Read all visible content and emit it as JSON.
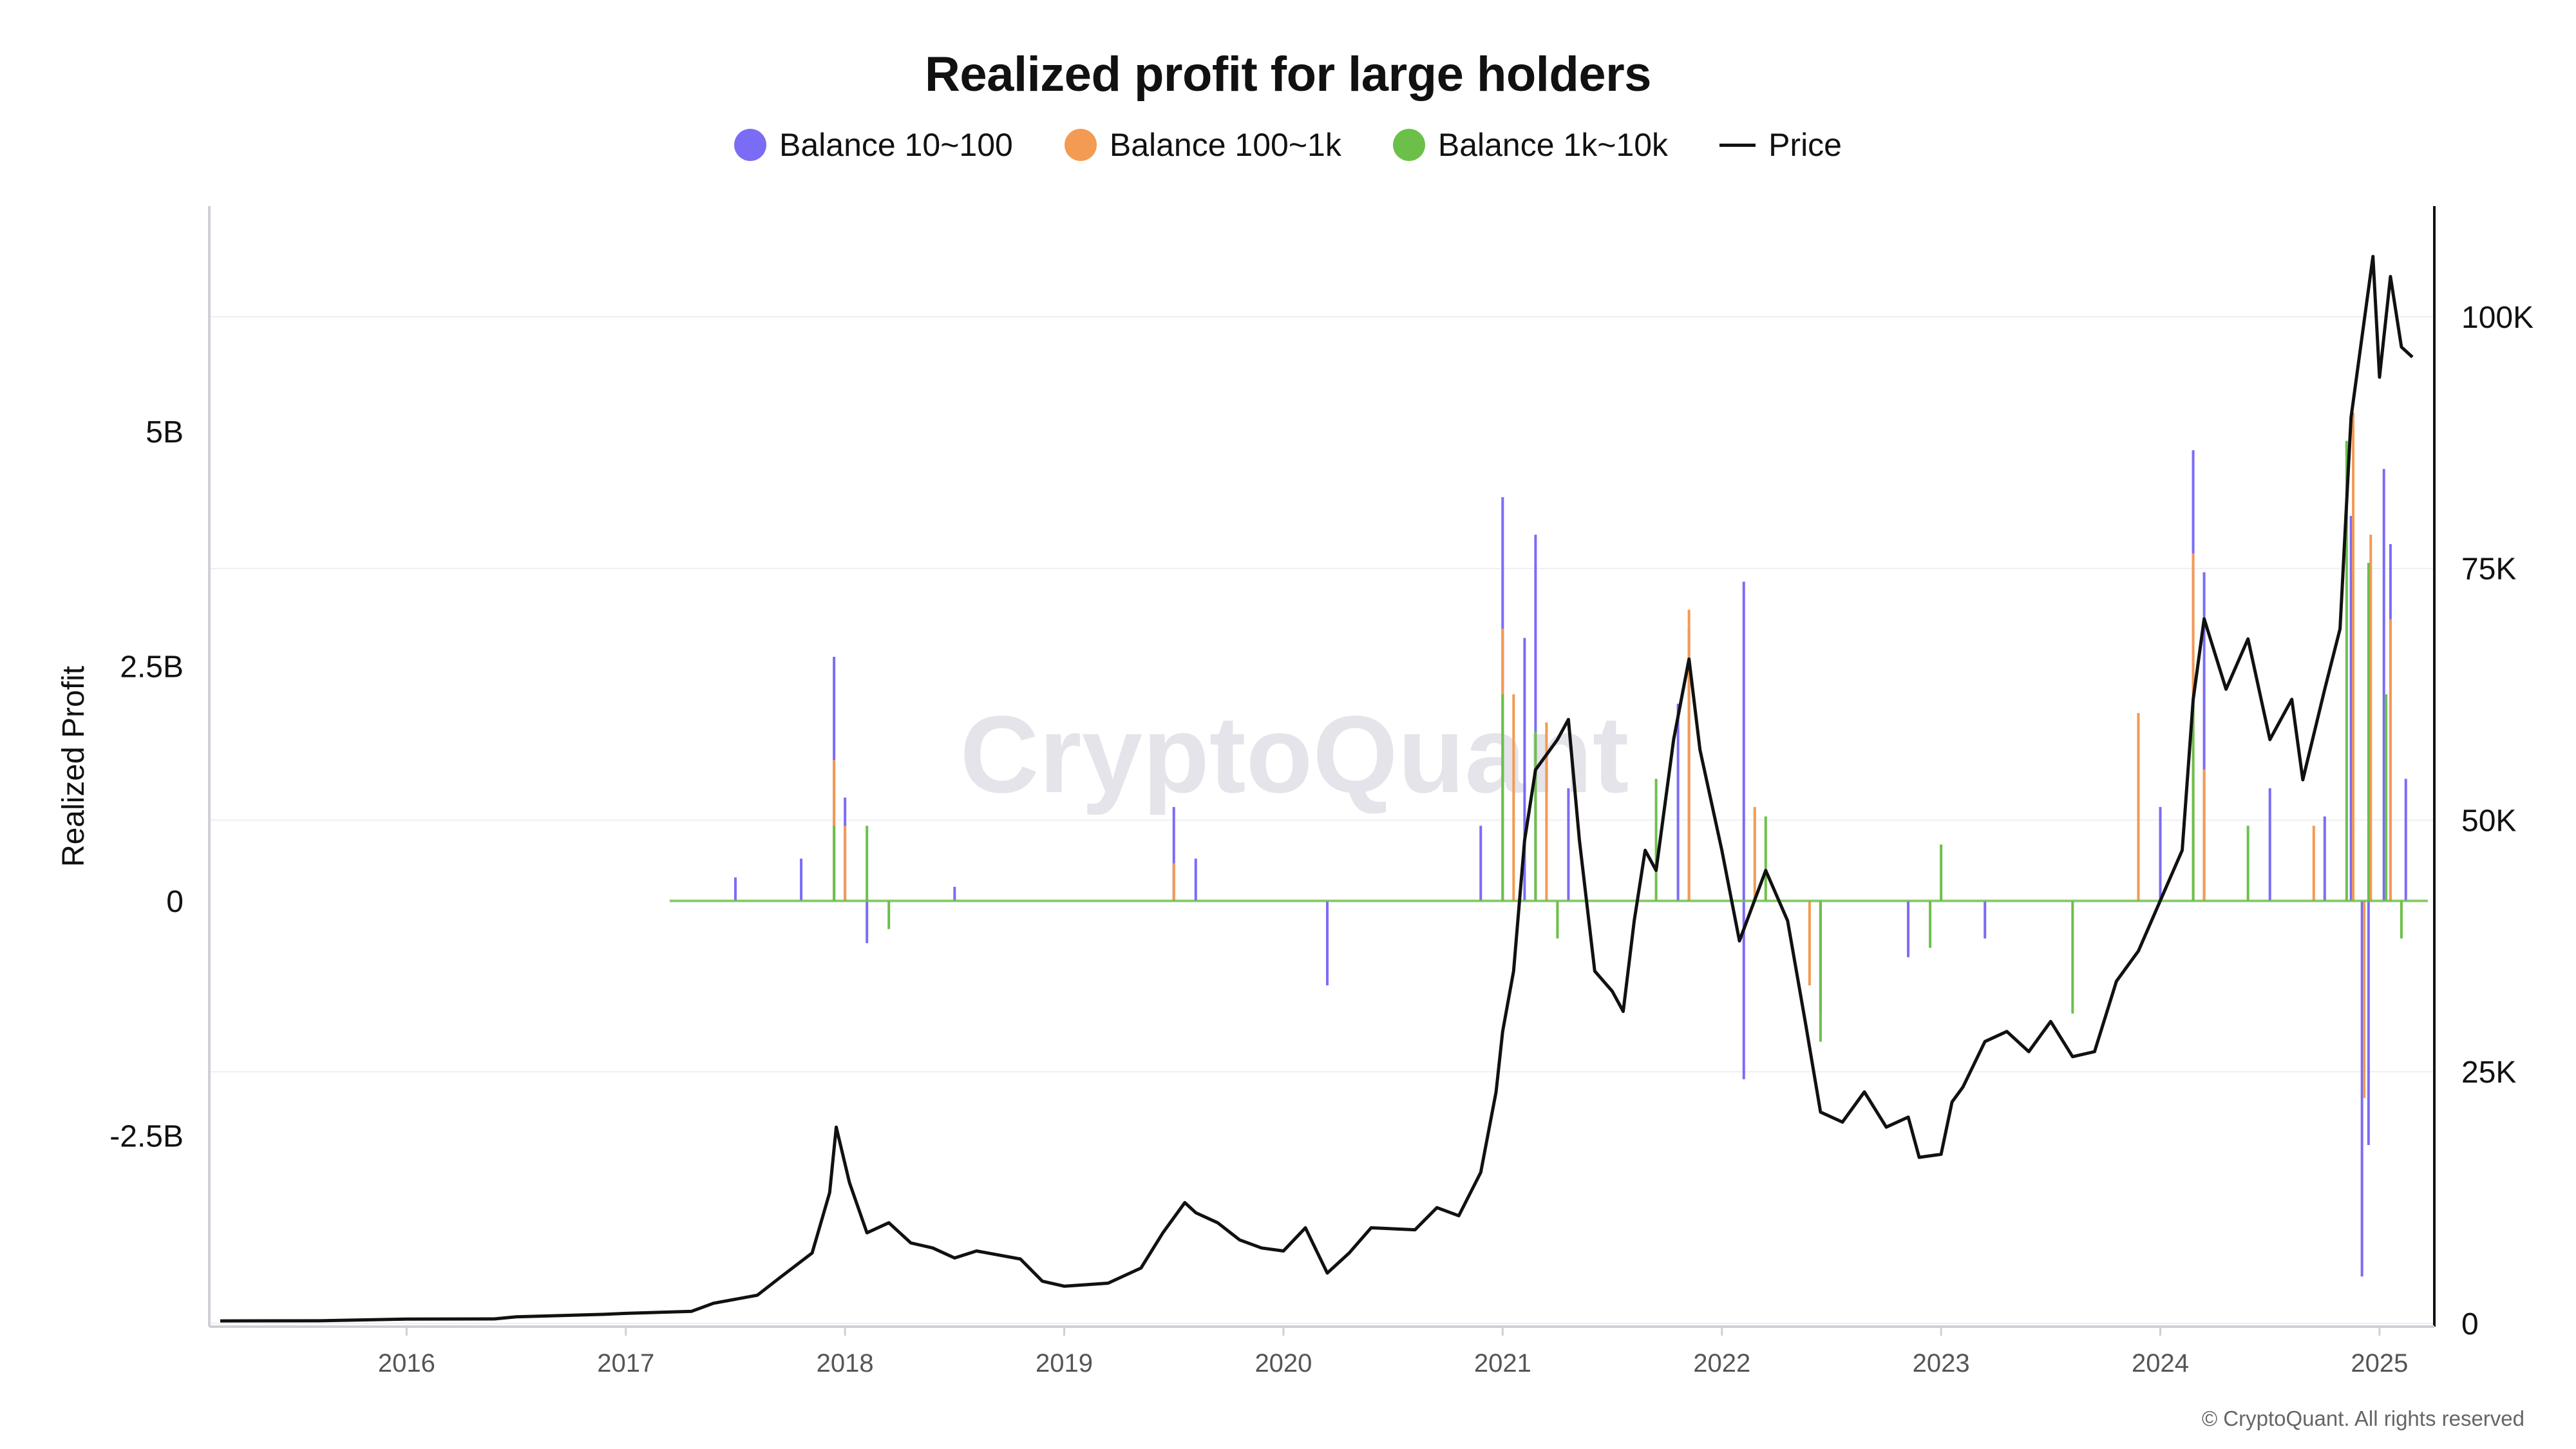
{
  "title": "Realized profit for large holders",
  "legend": [
    {
      "label": "Balance 10~100",
      "color": "#7b6cf6",
      "kind": "dot"
    },
    {
      "label": "Balance 100~1k",
      "color": "#f39a53",
      "kind": "dot"
    },
    {
      "label": "Balance 1k~10k",
      "color": "#6cc04a",
      "kind": "dot"
    },
    {
      "label": "Price",
      "color": "#111111",
      "kind": "line"
    }
  ],
  "footer": "© CryptoQuant. All rights reserved",
  "watermark": "CryptoQuant",
  "chart_data": {
    "type": "bar",
    "title": "Realized profit for large holders",
    "ylabel_left": "Realized Profit",
    "ylabel_right": "",
    "y_left_ticks": [
      "-2.5B",
      "0",
      "2.5B",
      "5B"
    ],
    "y_left_tick_values": [
      -2.5,
      0,
      2.5,
      5
    ],
    "ylim_left": [
      -4.5,
      7.4
    ],
    "y_right_ticks": [
      "0",
      "25K",
      "50K",
      "75K",
      "100K"
    ],
    "y_right_tick_values": [
      0,
      25000,
      50000,
      75000,
      100000
    ],
    "ylim_right": [
      0,
      111000
    ],
    "x_ticks": [
      "2016",
      "2017",
      "2018",
      "2019",
      "2020",
      "2021",
      "2022",
      "2023",
      "2024",
      "2025"
    ],
    "x_tick_values": [
      2016,
      2017,
      2018,
      2019,
      2020,
      2021,
      2022,
      2023,
      2024,
      2025
    ],
    "xlim": [
      2015.1,
      2025.25
    ],
    "grid": true,
    "legend_position": "top-center",
    "series": [
      {
        "name": "Balance 10~100",
        "color": "#7b6cf6",
        "points": [
          [
            2017.5,
            0.25
          ],
          [
            2017.8,
            0.45
          ],
          [
            2017.95,
            2.6
          ],
          [
            2018.0,
            1.1
          ],
          [
            2018.1,
            -0.45
          ],
          [
            2018.5,
            0.15
          ],
          [
            2019.5,
            1.0
          ],
          [
            2019.6,
            0.45
          ],
          [
            2020.2,
            -0.9
          ],
          [
            2020.9,
            0.8
          ],
          [
            2021.0,
            4.3
          ],
          [
            2021.1,
            2.8
          ],
          [
            2021.15,
            3.9
          ],
          [
            2021.3,
            1.2
          ],
          [
            2021.8,
            2.1
          ],
          [
            2021.85,
            2.9
          ],
          [
            2022.1,
            3.4
          ],
          [
            2022.1,
            -1.9
          ],
          [
            2022.45,
            -1.2
          ],
          [
            2022.85,
            -0.6
          ],
          [
            2023.2,
            -0.4
          ],
          [
            2024.0,
            1.0
          ],
          [
            2024.15,
            4.8
          ],
          [
            2024.2,
            3.5
          ],
          [
            2024.5,
            1.2
          ],
          [
            2024.75,
            0.9
          ],
          [
            2024.87,
            4.1
          ],
          [
            2024.92,
            -4.0
          ],
          [
            2024.95,
            -2.6
          ],
          [
            2025.02,
            4.6
          ],
          [
            2025.05,
            3.8
          ],
          [
            2025.12,
            1.3
          ]
        ]
      },
      {
        "name": "Balance 100~1k",
        "color": "#f39a53",
        "points": [
          [
            2017.95,
            1.5
          ],
          [
            2018.0,
            0.8
          ],
          [
            2019.5,
            0.4
          ],
          [
            2021.0,
            2.9
          ],
          [
            2021.05,
            2.2
          ],
          [
            2021.2,
            1.9
          ],
          [
            2021.85,
            3.1
          ],
          [
            2022.15,
            1.0
          ],
          [
            2022.4,
            -0.9
          ],
          [
            2023.9,
            2.0
          ],
          [
            2024.15,
            3.7
          ],
          [
            2024.2,
            1.4
          ],
          [
            2024.7,
            0.8
          ],
          [
            2024.88,
            5.2
          ],
          [
            2024.93,
            -2.1
          ],
          [
            2024.96,
            3.9
          ],
          [
            2025.05,
            3.0
          ]
        ]
      },
      {
        "name": "Balance 1k~10k",
        "color": "#6cc04a",
        "points": [
          [
            2017.95,
            0.8
          ],
          [
            2018.1,
            0.8
          ],
          [
            2018.2,
            -0.3
          ],
          [
            2021.0,
            2.2
          ],
          [
            2021.15,
            1.8
          ],
          [
            2021.25,
            -0.4
          ],
          [
            2021.7,
            1.3
          ],
          [
            2022.2,
            0.9
          ],
          [
            2022.45,
            -1.5
          ],
          [
            2022.95,
            -0.5
          ],
          [
            2023.0,
            0.6
          ],
          [
            2023.6,
            -1.2
          ],
          [
            2024.15,
            2.2
          ],
          [
            2024.4,
            0.8
          ],
          [
            2024.85,
            4.9
          ],
          [
            2024.95,
            3.6
          ],
          [
            2025.03,
            2.2
          ],
          [
            2025.1,
            -0.4
          ]
        ]
      },
      {
        "name": "Price",
        "color": "#111111",
        "points": [
          [
            2015.15,
            250
          ],
          [
            2015.6,
            260
          ],
          [
            2016.0,
            430
          ],
          [
            2016.4,
            450
          ],
          [
            2016.5,
            650
          ],
          [
            2016.9,
            900
          ],
          [
            2017.0,
            1000
          ],
          [
            2017.3,
            1200
          ],
          [
            2017.4,
            2000
          ],
          [
            2017.6,
            2800
          ],
          [
            2017.7,
            4500
          ],
          [
            2017.85,
            7000
          ],
          [
            2017.93,
            13000
          ],
          [
            2017.96,
            19500
          ],
          [
            2018.02,
            14000
          ],
          [
            2018.1,
            9000
          ],
          [
            2018.2,
            10000
          ],
          [
            2018.3,
            8000
          ],
          [
            2018.4,
            7500
          ],
          [
            2018.5,
            6500
          ],
          [
            2018.6,
            7200
          ],
          [
            2018.8,
            6400
          ],
          [
            2018.9,
            4200
          ],
          [
            2019.0,
            3700
          ],
          [
            2019.2,
            4000
          ],
          [
            2019.35,
            5500
          ],
          [
            2019.45,
            9000
          ],
          [
            2019.55,
            12000
          ],
          [
            2019.6,
            11000
          ],
          [
            2019.7,
            10000
          ],
          [
            2019.8,
            8300
          ],
          [
            2019.9,
            7500
          ],
          [
            2020.0,
            7200
          ],
          [
            2020.1,
            9500
          ],
          [
            2020.2,
            5000
          ],
          [
            2020.3,
            7000
          ],
          [
            2020.4,
            9500
          ],
          [
            2020.6,
            9300
          ],
          [
            2020.7,
            11500
          ],
          [
            2020.8,
            10700
          ],
          [
            2020.9,
            15000
          ],
          [
            2020.97,
            23000
          ],
          [
            2021.0,
            29000
          ],
          [
            2021.05,
            35000
          ],
          [
            2021.1,
            48000
          ],
          [
            2021.15,
            55000
          ],
          [
            2021.25,
            58000
          ],
          [
            2021.3,
            60000
          ],
          [
            2021.35,
            48000
          ],
          [
            2021.42,
            35000
          ],
          [
            2021.5,
            33000
          ],
          [
            2021.55,
            31000
          ],
          [
            2021.6,
            40000
          ],
          [
            2021.65,
            47000
          ],
          [
            2021.7,
            45000
          ],
          [
            2021.78,
            58000
          ],
          [
            2021.85,
            66000
          ],
          [
            2021.9,
            57000
          ],
          [
            2022.0,
            47000
          ],
          [
            2022.08,
            38000
          ],
          [
            2022.2,
            45000
          ],
          [
            2022.3,
            40000
          ],
          [
            2022.38,
            30000
          ],
          [
            2022.45,
            21000
          ],
          [
            2022.55,
            20000
          ],
          [
            2022.65,
            23000
          ],
          [
            2022.75,
            19500
          ],
          [
            2022.85,
            20500
          ],
          [
            2022.9,
            16500
          ],
          [
            2023.0,
            16800
          ],
          [
            2023.05,
            22000
          ],
          [
            2023.1,
            23500
          ],
          [
            2023.2,
            28000
          ],
          [
            2023.3,
            29000
          ],
          [
            2023.4,
            27000
          ],
          [
            2023.5,
            30000
          ],
          [
            2023.6,
            26500
          ],
          [
            2023.7,
            27000
          ],
          [
            2023.8,
            34000
          ],
          [
            2023.9,
            37000
          ],
          [
            2024.0,
            42000
          ],
          [
            2024.1,
            47000
          ],
          [
            2024.15,
            62000
          ],
          [
            2024.2,
            70000
          ],
          [
            2024.3,
            63000
          ],
          [
            2024.4,
            68000
          ],
          [
            2024.5,
            58000
          ],
          [
            2024.6,
            62000
          ],
          [
            2024.65,
            54000
          ],
          [
            2024.75,
            63000
          ],
          [
            2024.82,
            69000
          ],
          [
            2024.87,
            90000
          ],
          [
            2024.92,
            98000
          ],
          [
            2024.97,
            106000
          ],
          [
            2025.0,
            94000
          ],
          [
            2025.05,
            104000
          ],
          [
            2025.1,
            97000
          ],
          [
            2025.15,
            96000
          ]
        ]
      }
    ]
  }
}
